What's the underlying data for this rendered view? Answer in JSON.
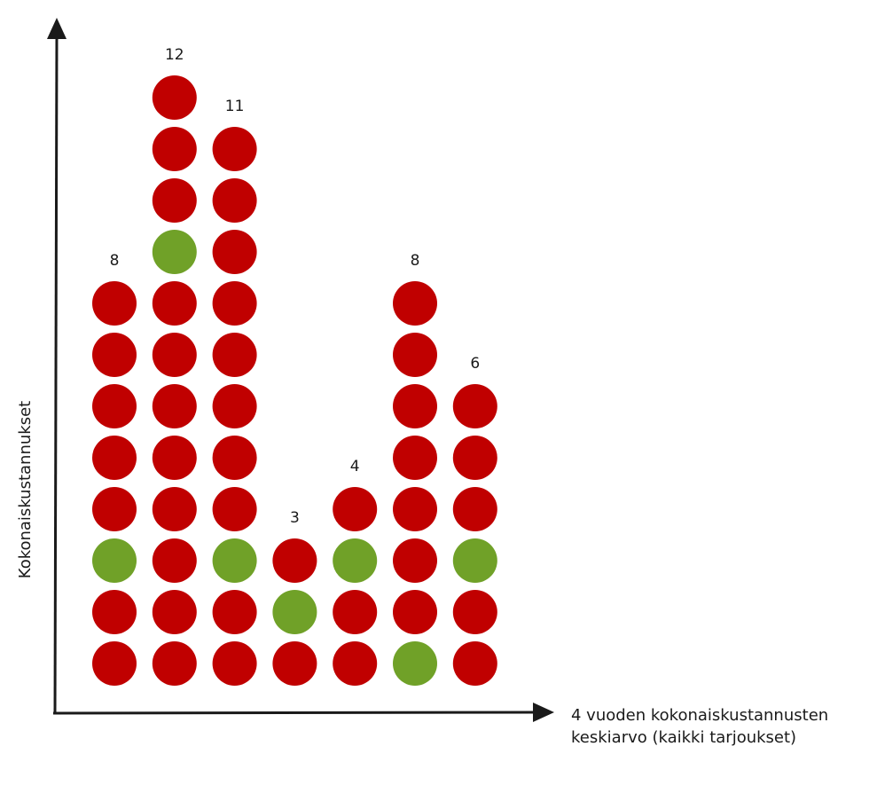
{
  "chart_data": {
    "type": "dot-column",
    "xlabel": [
      "4 vuoden kokonaiskustannusten",
      "keskiarvo (kaikki tarjoukset)"
    ],
    "ylabel": "Kokonaiskustannukset",
    "colors": {
      "red": "#c00000",
      "green": "#70a128",
      "axis": "#1a1a1a"
    },
    "columns": [
      {
        "count": 8,
        "green_positions_from_bottom": [
          3
        ]
      },
      {
        "count": 12,
        "green_positions_from_bottom": [
          9
        ]
      },
      {
        "count": 11,
        "green_positions_from_bottom": [
          3
        ]
      },
      {
        "count": 3,
        "green_positions_from_bottom": [
          2
        ]
      },
      {
        "count": 4,
        "green_positions_from_bottom": [
          3
        ]
      },
      {
        "count": 8,
        "green_positions_from_bottom": [
          1
        ]
      },
      {
        "count": 6,
        "green_positions_from_bottom": [
          3
        ]
      }
    ]
  }
}
